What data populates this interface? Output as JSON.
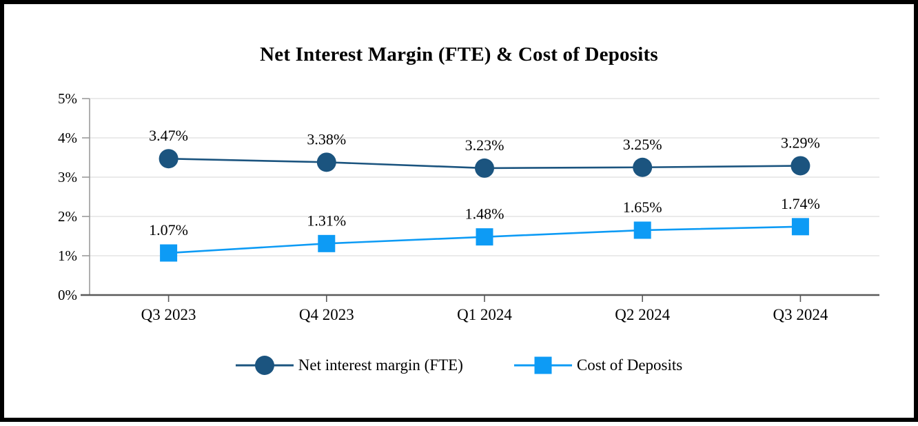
{
  "chart": {
    "background_color": "#FFFFFF",
    "frame_color": "#000000"
  },
  "chart_data": {
    "type": "line",
    "title": "Net Interest Margin (FTE) & Cost of Deposits",
    "categories": [
      "Q3 2023",
      "Q4 2023",
      "Q1 2024",
      "Q2 2024",
      "Q3 2024"
    ],
    "series": [
      {
        "name": "Net interest margin (FTE)",
        "values": [
          3.47,
          3.38,
          3.23,
          3.25,
          3.29
        ],
        "labels": [
          "3.47%",
          "3.38%",
          "3.23%",
          "3.25%",
          "3.29%"
        ],
        "color": "#1B547F",
        "marker": "circle"
      },
      {
        "name": "Cost of Deposits",
        "values": [
          1.07,
          1.31,
          1.48,
          1.65,
          1.74
        ],
        "labels": [
          "1.07%",
          "1.31%",
          "1.48%",
          "1.65%",
          "1.74%"
        ],
        "color": "#0D9BF5",
        "marker": "square"
      }
    ],
    "y_axis": {
      "ticks": [
        "5%",
        "4%",
        "3%",
        "2%",
        "1%",
        "0%"
      ],
      "tick_values": [
        5,
        4,
        3,
        2,
        1,
        0
      ],
      "min": 0,
      "max": 5
    },
    "grid": true,
    "legend_position": "bottom",
    "colors": {
      "gridline": "#E4E4E4",
      "y_axis_line": "#9B9B9B",
      "x_axis_line": "#595959",
      "text": "#000000"
    }
  }
}
